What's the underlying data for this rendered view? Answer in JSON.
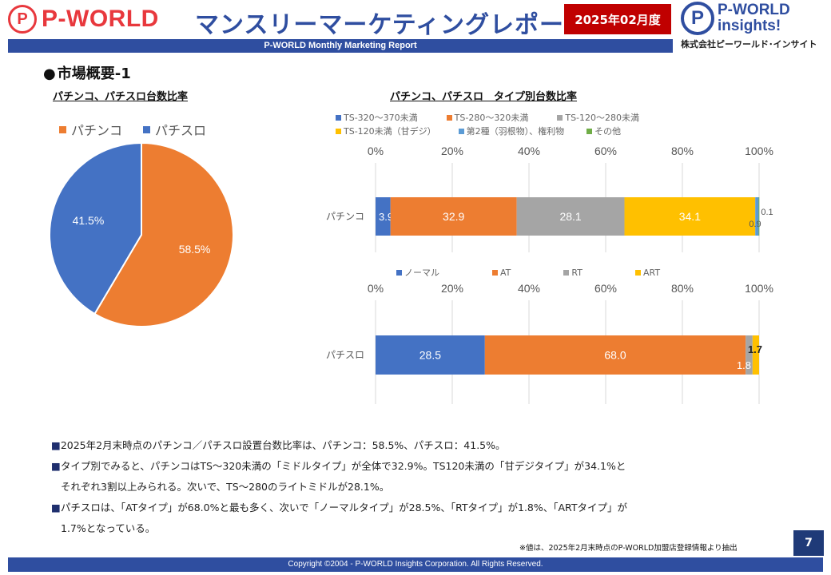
{
  "header": {
    "logo_left_mark": "P",
    "logo_left_text": "P-WORLD",
    "title": "マンスリーマーケティングレポート",
    "date_badge": "2025年02月度",
    "subtitle": "P-WORLD Monthly Marketing Report",
    "logo_right_mark": "P",
    "logo_right_line1": "P-WORLD",
    "logo_right_line2": "insights!",
    "logo_right_company": "株式会社ピーワールド･インサイト"
  },
  "section_heading": "市場概要-1",
  "colors": {
    "brand_blue": "#2f4ea0",
    "brand_red": "#c00000",
    "pachinko_orange": "#ed7d31",
    "pachislot_blue": "#4472c4",
    "gray": "#a5a5a5",
    "yellow": "#ffc000",
    "light_blue": "#5b9bd5",
    "green": "#70ad47"
  },
  "chart_data": [
    {
      "type": "pie",
      "title": "パチンコ、パチスロ台数比率",
      "labels": [
        "パチンコ",
        "パチスロ"
      ],
      "values": [
        58.5,
        41.5
      ],
      "value_labels": [
        "58.5%",
        "41.5%"
      ],
      "colors": [
        "#ed7d31",
        "#4472c4"
      ],
      "legend": "top"
    },
    {
      "type": "bar",
      "orientation": "horizontal",
      "stacked": true,
      "title": "パチンコ、パチスロ　タイプ別台数比率",
      "categories": [
        "パチンコ"
      ],
      "xlim": [
        0,
        100
      ],
      "ticks": [
        "0%",
        "20%",
        "40%",
        "60%",
        "80%",
        "100%"
      ],
      "series": [
        {
          "name": "TS-320～370未満",
          "values": [
            3.9
          ],
          "label": "3.9",
          "color": "#4472c4"
        },
        {
          "name": "TS-280～320未満",
          "values": [
            32.9
          ],
          "label": "32.9",
          "color": "#ed7d31"
        },
        {
          "name": "TS-120～280未満",
          "values": [
            28.1
          ],
          "label": "28.1",
          "color": "#a5a5a5"
        },
        {
          "name": "TS-120未満（甘デジ）",
          "values": [
            34.1
          ],
          "label": "34.1",
          "color": "#ffc000"
        },
        {
          "name": "第2種（羽根物）、権利物",
          "values": [
            0.9
          ],
          "label": "0.9",
          "color": "#5b9bd5"
        },
        {
          "name": "その他",
          "values": [
            0.1
          ],
          "label": "0.1",
          "color": "#70ad47"
        }
      ],
      "legend": "top",
      "grid": true
    },
    {
      "type": "bar",
      "orientation": "horizontal",
      "stacked": true,
      "title": "",
      "categories": [
        "パチスロ"
      ],
      "xlim": [
        0,
        100
      ],
      "ticks": [
        "0%",
        "20%",
        "40%",
        "60%",
        "80%",
        "100%"
      ],
      "series": [
        {
          "name": "ノーマル",
          "values": [
            28.5
          ],
          "label": "28.5",
          "color": "#4472c4"
        },
        {
          "name": "AT",
          "values": [
            68.0
          ],
          "label": "68.0",
          "color": "#ed7d31"
        },
        {
          "name": "RT",
          "values": [
            1.8
          ],
          "label": "1.8",
          "color": "#a5a5a5"
        },
        {
          "name": "ART",
          "values": [
            1.7
          ],
          "label": "1.7",
          "color": "#ffc000"
        }
      ],
      "legend": "top",
      "grid": true
    }
  ],
  "notes": [
    {
      "lines": [
        "2025年2月末時点のパチンコ／パチスロ設置台数比率は、パチンコ：58.5%、パチスロ：41.5%。"
      ]
    },
    {
      "lines": [
        "タイプ別でみると、パチンコはTS～320未満の「ミドルタイプ」が全体で32.9%。TS120未満の「甘デジタイプ」が34.1%と",
        "それぞれ3割以上みられる。次いで、TS～280のライトミドルが28.1%。"
      ]
    },
    {
      "lines": [
        "パチスロは、「ATタイプ」が68.0%と最も多く、次いで「ノーマルタイプ」が28.5%、「RTタイプ」が1.8%、「ARTタイプ」が",
        "1.7%となっている。"
      ]
    }
  ],
  "footnote": "※値は、2025年2月末時点のP-WORLD加盟店登録情報より抽出",
  "page_number": "7",
  "footer": "Copyright ©2004 -  P-WORLD Insights Corporation. All Rights Reserved."
}
